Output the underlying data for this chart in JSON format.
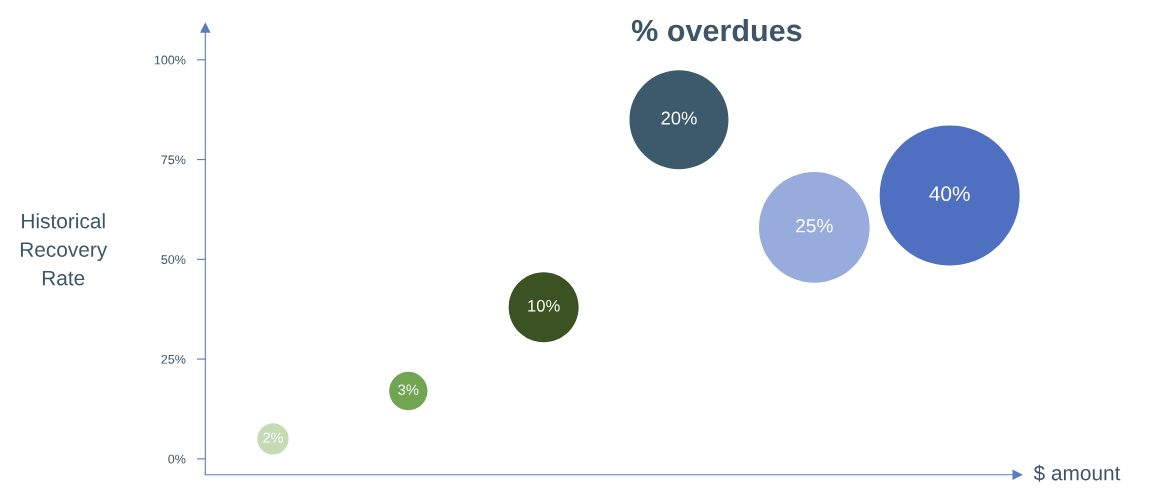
{
  "chart_data": {
    "type": "bubble",
    "title": "% overdues",
    "xlabel": "$ amount",
    "ylabel": "Historical\nRecovery\nRate",
    "categories": [
      null,
      null,
      null,
      null,
      null,
      null
    ],
    "values": [
      5,
      17,
      38,
      85,
      58,
      66
    ],
    "sizes": [
      2,
      3,
      10,
      20,
      25,
      40
    ],
    "value_labels": [
      "2%",
      "3%",
      "10%",
      "20%",
      "25%",
      "40%"
    ],
    "colors": [
      "#c5dbb5",
      "#70a552",
      "#3b5323",
      "#3d5a6c",
      "#97acdc",
      "#4f70c0"
    ],
    "ylim": [
      -4,
      108
    ],
    "yticks": [
      {
        "value": 0,
        "label": "0%"
      },
      {
        "value": 25,
        "label": "25%"
      },
      {
        "value": 50,
        "label": "50%"
      },
      {
        "value": 75,
        "label": "75%"
      },
      {
        "value": 100,
        "label": "100%"
      }
    ],
    "tick_labels": "y",
    "grid": false,
    "legend": false
  }
}
